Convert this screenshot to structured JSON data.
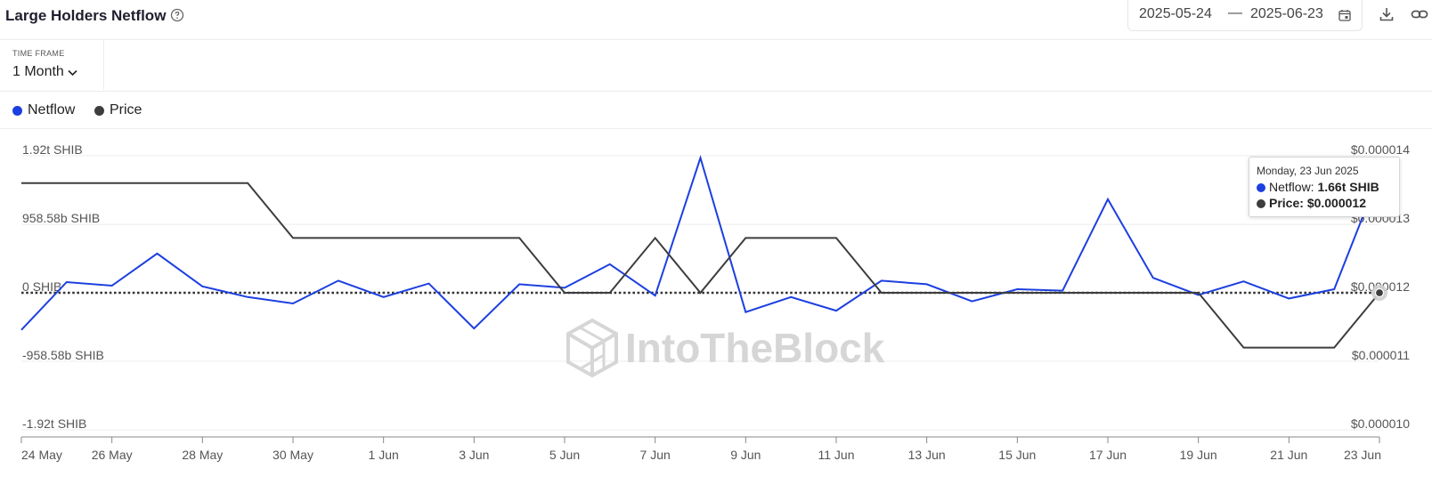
{
  "header": {
    "title": "Large Holders Netflow",
    "date_start": "2025-05-24",
    "date_separator": "—",
    "date_end": "2025-06-23"
  },
  "timeframe": {
    "label": "TIME FRAME",
    "value": "1 Month"
  },
  "legend": [
    {
      "name": "Netflow",
      "color": "#1c3fe0"
    },
    {
      "name": "Price",
      "color": "#3d3d3d"
    }
  ],
  "watermark": "IntoTheBlock",
  "tooltip": {
    "date": "Monday, 23 Jun 2025",
    "netflow_label": "Netflow:",
    "netflow_value": "1.66t SHIB",
    "price_label": "Price:",
    "price_value": "$0.000012"
  },
  "chart_data": {
    "type": "line",
    "x": [
      "24 May",
      "25 May",
      "26 May",
      "27 May",
      "28 May",
      "29 May",
      "30 May",
      "31 May",
      "1 Jun",
      "2 Jun",
      "3 Jun",
      "4 Jun",
      "5 Jun",
      "6 Jun",
      "7 Jun",
      "8 Jun",
      "9 Jun",
      "10 Jun",
      "11 Jun",
      "12 Jun",
      "13 Jun",
      "14 Jun",
      "15 Jun",
      "16 Jun",
      "17 Jun",
      "18 Jun",
      "19 Jun",
      "20 Jun",
      "21 Jun",
      "22 Jun",
      "23 Jun"
    ],
    "x_tick_labels": [
      "24 May",
      "26 May",
      "28 May",
      "30 May",
      "1 Jun",
      "3 Jun",
      "5 Jun",
      "7 Jun",
      "9 Jun",
      "11 Jun",
      "13 Jun",
      "15 Jun",
      "17 Jun",
      "19 Jun",
      "21 Jun",
      "23 Jun"
    ],
    "y_left": {
      "ticks": [
        1920,
        958.58,
        0,
        -958.58,
        -1920
      ],
      "tick_labels": [
        "1.92t SHIB",
        "958.58b SHIB",
        "0 SHIB",
        "-958.58b SHIB",
        "-1.92t SHIB"
      ],
      "ylim": [
        -1920,
        1920
      ]
    },
    "y_right": {
      "ticks": [
        1.4e-05,
        1.3e-05,
        1.2e-05,
        1.1e-05,
        1e-05
      ],
      "tick_labels": [
        "$0.000014",
        "$0.000013",
        "$0.000012",
        "$0.000011",
        "$0.000010"
      ],
      "ylim": [
        1e-05,
        1.4e-05
      ]
    },
    "series": [
      {
        "name": "Netflow",
        "axis": "left",
        "color": "#1c3fe0",
        "values": [
          -520,
          150,
          100,
          550,
          90,
          -60,
          -150,
          170,
          -60,
          130,
          -500,
          120,
          70,
          400,
          -40,
          1890,
          -270,
          -60,
          -250,
          170,
          120,
          -120,
          50,
          30,
          1310,
          210,
          -30,
          160,
          -80,
          50,
          1660
        ]
      },
      {
        "name": "Price",
        "axis": "right",
        "color": "#3d3d3d",
        "values": [
          1.36e-05,
          1.36e-05,
          1.36e-05,
          1.36e-05,
          1.36e-05,
          1.36e-05,
          1.28e-05,
          1.28e-05,
          1.28e-05,
          1.28e-05,
          1.28e-05,
          1.28e-05,
          1.2e-05,
          1.2e-05,
          1.28e-05,
          1.2e-05,
          1.28e-05,
          1.28e-05,
          1.28e-05,
          1.2e-05,
          1.2e-05,
          1.2e-05,
          1.2e-05,
          1.2e-05,
          1.2e-05,
          1.2e-05,
          1.2e-05,
          1.12e-05,
          1.12e-05,
          1.12e-05,
          1.2e-05
        ]
      }
    ],
    "highlighted_index": 30,
    "grid": true,
    "legend_position": "top-left"
  }
}
